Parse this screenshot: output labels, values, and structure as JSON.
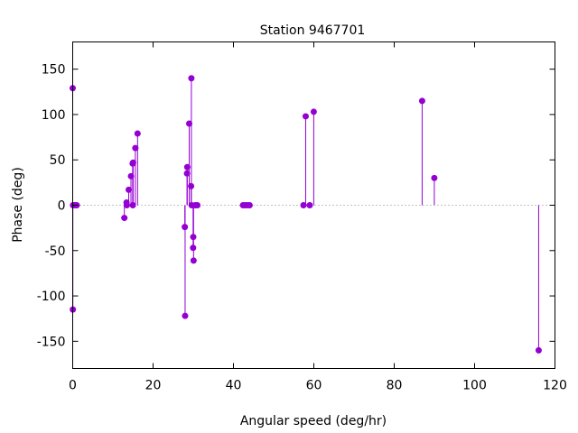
{
  "chart_data": {
    "type": "scatter",
    "style": "impulses-with-points",
    "title": "Station 9467701",
    "xlabel": "Angular speed (deg/hr)",
    "ylabel": "Phase (deg)",
    "xlim": [
      0,
      120
    ],
    "ylim": [
      -180,
      180
    ],
    "xticks": [
      0,
      20,
      40,
      60,
      80,
      100,
      120
    ],
    "yticks": [
      -150,
      -100,
      -50,
      0,
      50,
      100,
      150
    ],
    "grid": false,
    "zero_line": true,
    "color": "#9400d3",
    "points": [
      {
        "x": 0.0,
        "y": 129
      },
      {
        "x": 0.04,
        "y": -115
      },
      {
        "x": 0.08,
        "y": 0
      },
      {
        "x": 0.5,
        "y": 0
      },
      {
        "x": 1.0,
        "y": 0
      },
      {
        "x": 12.85,
        "y": -14
      },
      {
        "x": 13.4,
        "y": 3
      },
      {
        "x": 13.47,
        "y": 0
      },
      {
        "x": 13.94,
        "y": 17
      },
      {
        "x": 14.5,
        "y": 32
      },
      {
        "x": 14.92,
        "y": 46
      },
      {
        "x": 14.96,
        "y": 0
      },
      {
        "x": 15.04,
        "y": 47
      },
      {
        "x": 15.59,
        "y": 63
      },
      {
        "x": 16.14,
        "y": 79
      },
      {
        "x": 27.9,
        "y": -24
      },
      {
        "x": 27.97,
        "y": -122
      },
      {
        "x": 28.44,
        "y": 35
      },
      {
        "x": 28.51,
        "y": 42
      },
      {
        "x": 28.99,
        "y": 90
      },
      {
        "x": 29.46,
        "y": 21
      },
      {
        "x": 29.53,
        "y": 140
      },
      {
        "x": 29.6,
        "y": 0
      },
      {
        "x": 29.96,
        "y": -47
      },
      {
        "x": 30.0,
        "y": -35
      },
      {
        "x": 30.08,
        "y": -61
      },
      {
        "x": 30.5,
        "y": 0
      },
      {
        "x": 31.02,
        "y": 0
      },
      {
        "x": 42.38,
        "y": 0
      },
      {
        "x": 42.93,
        "y": 0
      },
      {
        "x": 43.48,
        "y": 0
      },
      {
        "x": 44.02,
        "y": 0
      },
      {
        "x": 57.42,
        "y": 0
      },
      {
        "x": 57.97,
        "y": 98
      },
      {
        "x": 58.98,
        "y": 0
      },
      {
        "x": 59.98,
        "y": 103
      },
      {
        "x": 86.95,
        "y": 115
      },
      {
        "x": 89.98,
        "y": 30
      },
      {
        "x": 115.94,
        "y": -160
      }
    ]
  }
}
